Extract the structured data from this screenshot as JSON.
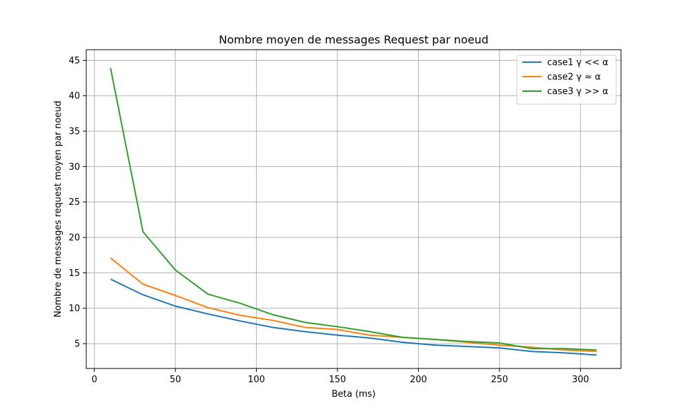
{
  "chart_data": {
    "type": "line",
    "title": "Nombre moyen de messages Request par noeud",
    "xlabel": "Beta (ms)",
    "ylabel": "Nombre de messages request moyen par noeud",
    "xlim": [
      -5,
      325
    ],
    "ylim": [
      1.5,
      46.5
    ],
    "xticks": [
      0,
      50,
      100,
      150,
      200,
      250,
      300
    ],
    "yticks": [
      5,
      10,
      15,
      20,
      25,
      30,
      35,
      40,
      45
    ],
    "grid": true,
    "legend_position": "top-right",
    "x": [
      10,
      30,
      50,
      70,
      90,
      110,
      130,
      150,
      170,
      190,
      210,
      230,
      250,
      270,
      290,
      310
    ],
    "series": [
      {
        "name": "case1 γ << α",
        "color": "#1f77b4",
        "values": [
          14.1,
          11.9,
          10.3,
          9.2,
          8.2,
          7.3,
          6.7,
          6.2,
          5.8,
          5.2,
          4.8,
          4.6,
          4.4,
          3.9,
          3.7,
          3.4
        ]
      },
      {
        "name": "case2 γ ≈ α",
        "color": "#ff7f0e",
        "values": [
          17.1,
          13.4,
          11.8,
          10.1,
          9.0,
          8.3,
          7.3,
          7.0,
          6.2,
          5.9,
          5.6,
          5.2,
          4.8,
          4.5,
          4.1,
          3.9
        ]
      },
      {
        "name": "case3 γ >> α",
        "color": "#2ca02c",
        "values": [
          43.9,
          20.8,
          15.4,
          12.0,
          10.7,
          9.1,
          8.0,
          7.4,
          6.7,
          5.9,
          5.6,
          5.3,
          5.1,
          4.3,
          4.3,
          4.1
        ]
      }
    ]
  }
}
